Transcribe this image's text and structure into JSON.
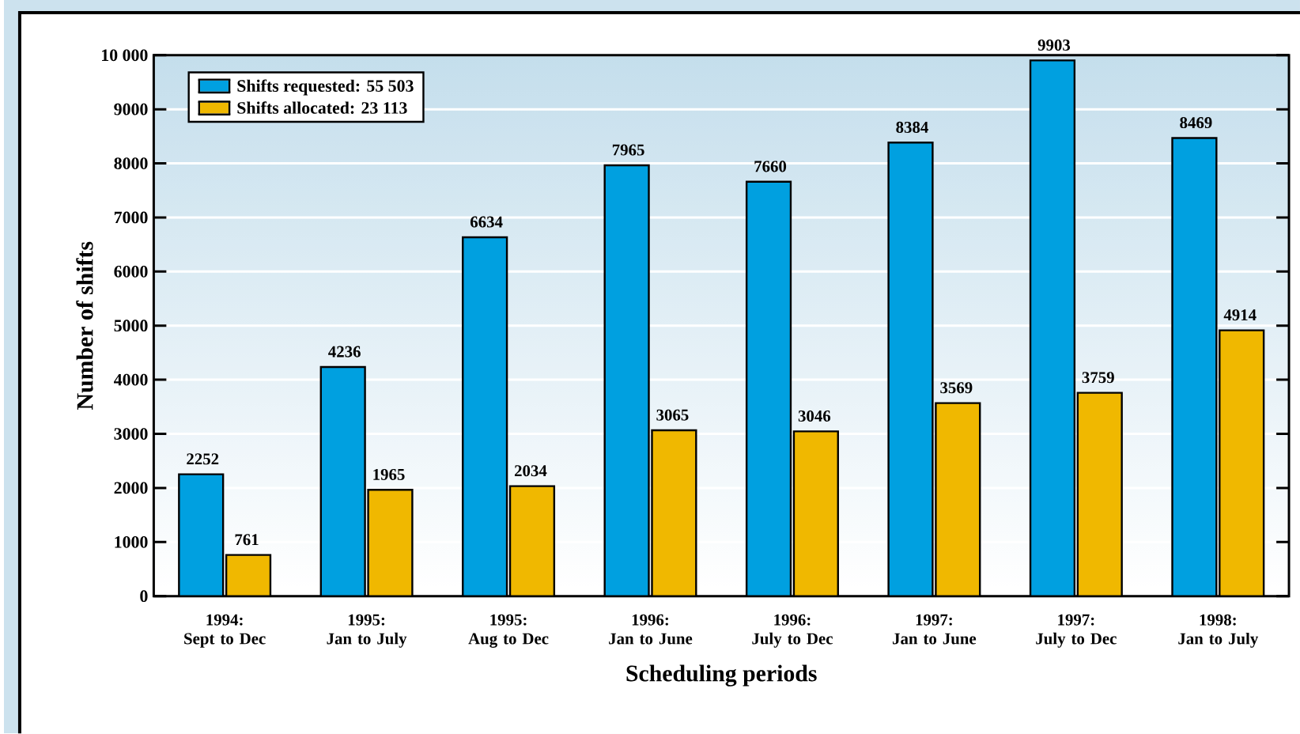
{
  "chart_data": {
    "type": "bar",
    "xlabel": "Scheduling periods",
    "ylabel": "Number of shifts",
    "categories": [
      "1994:\nSept to Dec",
      "1995:\nJan to July",
      "1995:\nAug to Dec",
      "1996:\nJan to June",
      "1996:\nJuly to Dec",
      "1997:\nJan to June",
      "1997:\nJuly to Dec",
      "1998:\nJan to July"
    ],
    "series": [
      {
        "name": "Shifts requested: 55 503",
        "color": "#00a0e0",
        "values": [
          2252,
          4236,
          6634,
          7965,
          7660,
          8384,
          9903,
          8469
        ]
      },
      {
        "name": "Shifts allocated: 23 113",
        "color": "#f0b800",
        "values": [
          761,
          1965,
          2034,
          3065,
          3046,
          3569,
          3759,
          4914
        ]
      }
    ],
    "ylim": [
      0,
      10000
    ],
    "yticks": [
      0,
      1000,
      2000,
      3000,
      4000,
      5000,
      6000,
      7000,
      8000,
      9000,
      {
        "value": 10000,
        "label": "10 000"
      }
    ],
    "grid": "y",
    "legend": "top left",
    "data_labels": true
  }
}
